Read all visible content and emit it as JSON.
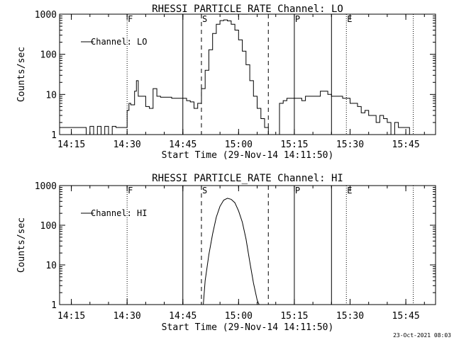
{
  "footer_stamp": "23-Oct-2021 08:03",
  "chart_data": [
    {
      "type": "line",
      "title": "RHESSI PARTICLE_RATE Channel: LO",
      "xlabel": "Start Time (29-Nov-14 14:11:50)",
      "ylabel": "Counts/sec",
      "y_scale": "log",
      "ylim": [
        1,
        1000
      ],
      "xlim": [
        "14:11:50",
        "15:53:00"
      ],
      "x_ticks": [
        "14:15",
        "14:30",
        "14:45",
        "15:00",
        "15:15",
        "15:30",
        "15:45"
      ],
      "y_ticks": [
        "1",
        "10",
        "100",
        "1000"
      ],
      "legend": {
        "label": "Channel: LO",
        "placement": "top-left"
      },
      "markers": [
        {
          "label": "F",
          "time": "14:30",
          "style": "dotted"
        },
        {
          "label": "",
          "time": "14:45",
          "style": "solid"
        },
        {
          "label": "S",
          "time": "14:50",
          "style": "dashed"
        },
        {
          "label": "",
          "time": "15:08",
          "style": "dashed"
        },
        {
          "label": "P",
          "time": "15:15",
          "style": "solid"
        },
        {
          "label": "",
          "time": "15:25",
          "style": "solid"
        },
        {
          "label": "E",
          "time": "15:29",
          "style": "dotted"
        },
        {
          "label": "",
          "time": "15:47",
          "style": "dotted"
        }
      ],
      "series": [
        {
          "name": "Channel: LO",
          "x": [
            "14:11:50",
            "14:15",
            "14:18",
            "14:19",
            "14:20",
            "14:21",
            "14:22",
            "14:23",
            "14:24",
            "14:25",
            "14:26",
            "14:27",
            "14:28",
            "14:29",
            "14:30",
            "14:30:30",
            "14:31",
            "14:32",
            "14:32:30",
            "14:33",
            "14:34",
            "14:35",
            "14:36",
            "14:37",
            "14:38",
            "14:39",
            "14:40",
            "14:42",
            "14:44",
            "14:45",
            "14:46",
            "14:47",
            "14:48",
            "14:49",
            "14:50",
            "14:51",
            "14:52",
            "14:53",
            "14:54",
            "14:55",
            "14:56",
            "14:57",
            "14:58",
            "14:59",
            "15:00",
            "15:01",
            "15:02",
            "15:03",
            "15:04",
            "15:05",
            "15:06",
            "15:07",
            "15:08",
            "15:09",
            "15:10",
            "15:11",
            "15:12",
            "15:13",
            "15:14",
            "15:15",
            "15:16",
            "15:17",
            "15:18",
            "15:19",
            "15:20",
            "15:22",
            "15:24",
            "15:25",
            "15:26",
            "15:27",
            "15:28",
            "15:29",
            "15:30",
            "15:31",
            "15:32",
            "15:33",
            "15:34",
            "15:35",
            "15:36",
            "15:37",
            "15:38",
            "15:39",
            "15:40",
            "15:41",
            "15:42",
            "15:43",
            "15:44",
            "15:45",
            "15:46",
            "15:47"
          ],
          "values": [
            1.5,
            1.5,
            1.5,
            1,
            1.6,
            1,
            1.6,
            1,
            1.6,
            1,
            1.6,
            1.5,
            1.5,
            1.5,
            4,
            6,
            5.5,
            12,
            22,
            9,
            9,
            5,
            4.5,
            14,
            9,
            8.5,
            8.5,
            8,
            8,
            8,
            7,
            6.5,
            4.5,
            6,
            14,
            40,
            130,
            330,
            560,
            690,
            720,
            680,
            560,
            400,
            230,
            120,
            55,
            22,
            9,
            4.5,
            2.5,
            1.5,
            1,
            1,
            1,
            6,
            7,
            8,
            8,
            8,
            8,
            7,
            9,
            9,
            9,
            12,
            10,
            9,
            9,
            9,
            8,
            8,
            6,
            6,
            5,
            3.5,
            4,
            3,
            3,
            2,
            3,
            2.5,
            2,
            1,
            2,
            1.5,
            1.5,
            1.5,
            1,
            1
          ]
        }
      ]
    },
    {
      "type": "line",
      "title": "RHESSI PARTICLE_RATE Channel: HI",
      "xlabel": "Start Time (29-Nov-14 14:11:50)",
      "ylabel": "Counts/sec",
      "y_scale": "log",
      "ylim": [
        1,
        1000
      ],
      "xlim": [
        "14:11:50",
        "15:53:00"
      ],
      "x_ticks": [
        "14:15",
        "14:30",
        "14:45",
        "15:00",
        "15:15",
        "15:30",
        "15:45"
      ],
      "y_ticks": [
        "1",
        "10",
        "100",
        "1000"
      ],
      "legend": {
        "label": "Channel: HI",
        "placement": "top-left"
      },
      "markers": [
        {
          "label": "F",
          "time": "14:30",
          "style": "dotted"
        },
        {
          "label": "",
          "time": "14:45",
          "style": "solid"
        },
        {
          "label": "S",
          "time": "14:50",
          "style": "dashed"
        },
        {
          "label": "",
          "time": "15:08",
          "style": "dashed"
        },
        {
          "label": "P",
          "time": "15:15",
          "style": "solid"
        },
        {
          "label": "",
          "time": "15:25",
          "style": "solid"
        },
        {
          "label": "E",
          "time": "15:29",
          "style": "dotted"
        },
        {
          "label": "",
          "time": "15:47",
          "style": "dotted"
        }
      ],
      "series": [
        {
          "name": "Channel: HI",
          "x": [
            "14:50:30",
            "14:51",
            "14:52",
            "14:53",
            "14:54",
            "14:55",
            "14:56",
            "14:57",
            "14:58",
            "14:59",
            "15:00",
            "15:01",
            "15:02",
            "15:03",
            "15:04",
            "15:05",
            "15:05:30"
          ],
          "values": [
            1,
            4,
            18,
            60,
            160,
            300,
            430,
            480,
            450,
            370,
            230,
            120,
            45,
            12,
            3.5,
            1.3,
            1
          ]
        }
      ]
    }
  ]
}
